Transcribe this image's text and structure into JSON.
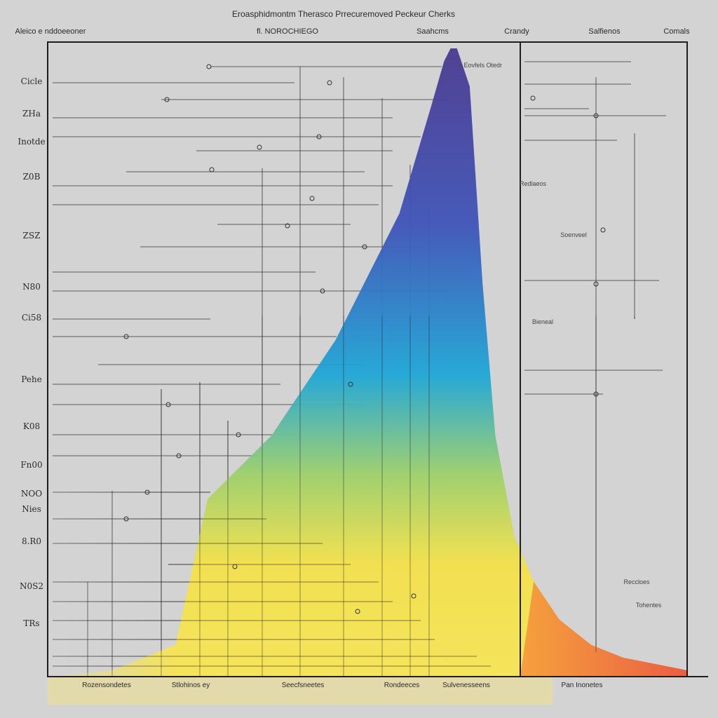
{
  "chart_data": {
    "type": "area",
    "title": "Eroasphidmontm Therasco Prrecuremoved Peckeur Cherks",
    "header_labels": [
      "Aleico e nddoeeoner",
      "fl. NOROCHIEGO",
      "Saahcms",
      "Crandy",
      "Salfienos",
      "Comals"
    ],
    "y_tick_labels": [
      "Cicle",
      "ZHa",
      "Inotde",
      "Z0B",
      "ZSZ",
      "N80",
      "Ci58",
      "Pehe",
      "K08",
      "Fn00",
      "NOO",
      "Nies",
      "8.R0",
      "N0S2",
      "TRs"
    ],
    "x_tick_labels": [
      "Rozensondetes",
      "Stlohinos ey",
      "Seecfsneetes",
      "Rondeeces",
      "Sulvenesseens",
      "Pan Inonetes"
    ],
    "series": [
      {
        "x": [
          0.0,
          0.1,
          0.2,
          0.25,
          0.35,
          0.45,
          0.55,
          0.6,
          0.62,
          0.63,
          0.64,
          0.66,
          0.68,
          0.7,
          0.73,
          0.76,
          0.8,
          0.85,
          0.9,
          0.95,
          1.0
        ],
        "y": [
          0.0,
          0.01,
          0.05,
          0.28,
          0.38,
          0.53,
          0.73,
          0.9,
          0.97,
          0.99,
          0.99,
          0.93,
          0.62,
          0.38,
          0.22,
          0.15,
          0.09,
          0.05,
          0.03,
          0.02,
          0.01
        ]
      }
    ],
    "annotations": [
      "» Eovfels Otedr",
      "Redlaeos",
      "Soenveel",
      "Bieneal",
      "Reccloes",
      "Tohentes"
    ],
    "xlim": [
      0,
      1
    ],
    "ylim": [
      0,
      1
    ],
    "grid": true,
    "colors": [
      "#f5e64a",
      "#9fd06a",
      "#1ea6d6",
      "#3f54b8",
      "#4a3a90",
      "#f08a3a",
      "#e94f40"
    ]
  }
}
